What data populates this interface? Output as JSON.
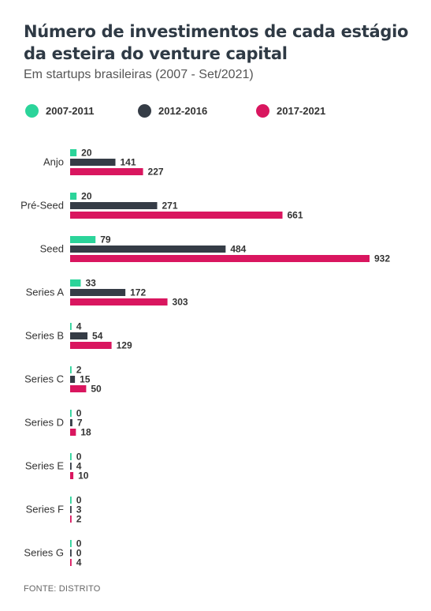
{
  "chart_data": {
    "type": "bar",
    "orientation": "horizontal",
    "title_line1": "Número de investimentos de cada estágio",
    "title_line2": "da esteira do venture capital",
    "subtitle": "Em startups brasileiras (2007 - Set/2021)",
    "legend_position": "top",
    "categories": [
      "Anjo",
      "Pré-Seed",
      "Seed",
      "Series A",
      "Series B",
      "Series C",
      "Series D",
      "Series E",
      "Series F",
      "Series G"
    ],
    "series": [
      {
        "name": "2007-2011",
        "color": "#2bd49a",
        "values": [
          20,
          20,
          79,
          33,
          4,
          2,
          0,
          0,
          0,
          0
        ]
      },
      {
        "name": "2012-2016",
        "color": "#353c46",
        "values": [
          141,
          271,
          484,
          172,
          54,
          15,
          7,
          4,
          3,
          0
        ]
      },
      {
        "name": "2017-2021",
        "color": "#d9165f",
        "values": [
          227,
          661,
          932,
          303,
          129,
          50,
          18,
          10,
          2,
          4
        ]
      }
    ],
    "grid": false,
    "source": "FONTE: DISTRITO"
  }
}
